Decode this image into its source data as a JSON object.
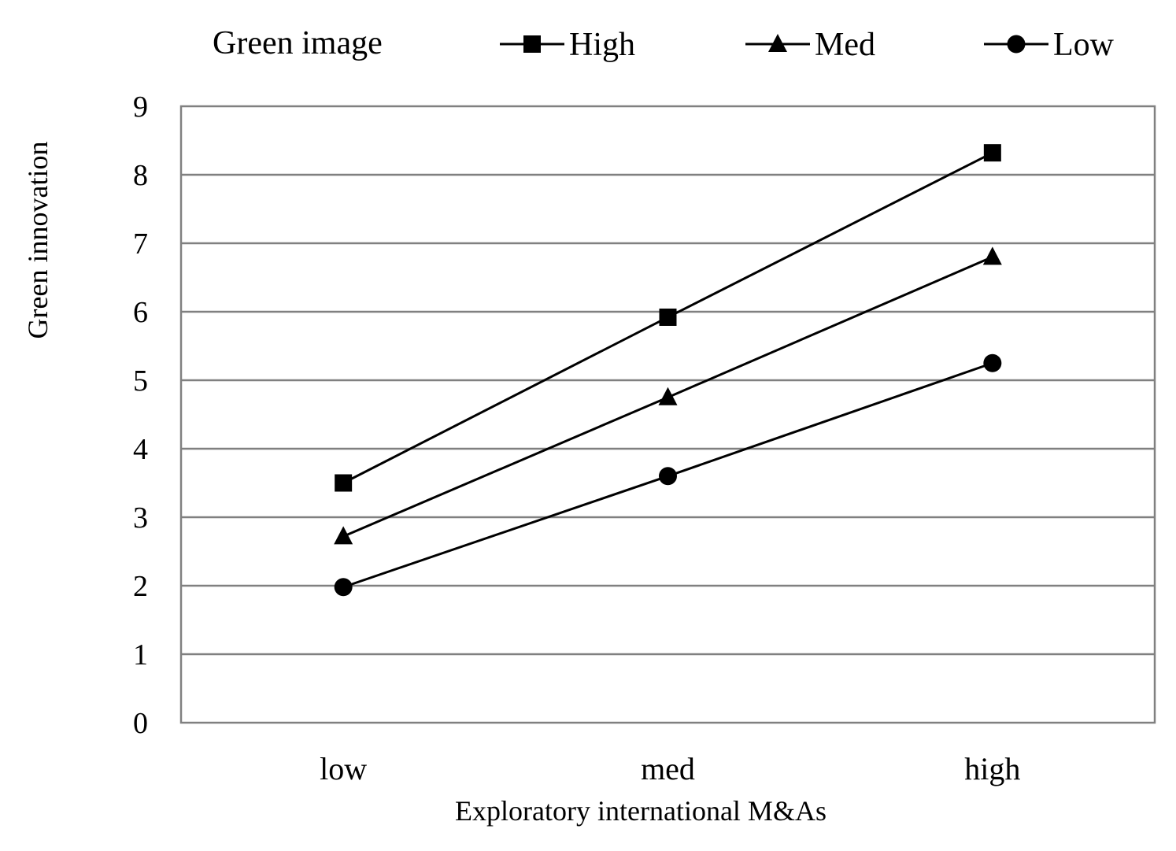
{
  "chart_data": {
    "type": "line",
    "categories": [
      "low",
      "med",
      "high"
    ],
    "series": [
      {
        "name": "High",
        "marker": "square",
        "values": [
          3.5,
          5.92,
          8.32
        ]
      },
      {
        "name": "Med",
        "marker": "triangle",
        "values": [
          2.72,
          4.75,
          6.8
        ]
      },
      {
        "name": "Low",
        "marker": "circle",
        "values": [
          1.98,
          3.6,
          5.25
        ]
      }
    ],
    "legend_title": "Green image",
    "xlabel": "Exploratory international M&As",
    "ylabel": "Green innovation",
    "ylim": [
      0,
      9
    ],
    "yticks": [
      "0",
      "1",
      "2",
      "3",
      "4",
      "5",
      "6",
      "7",
      "8",
      "9"
    ],
    "grid": true,
    "legend_position": "top",
    "colors": {
      "line": "#000000",
      "grid": "#808080"
    }
  }
}
